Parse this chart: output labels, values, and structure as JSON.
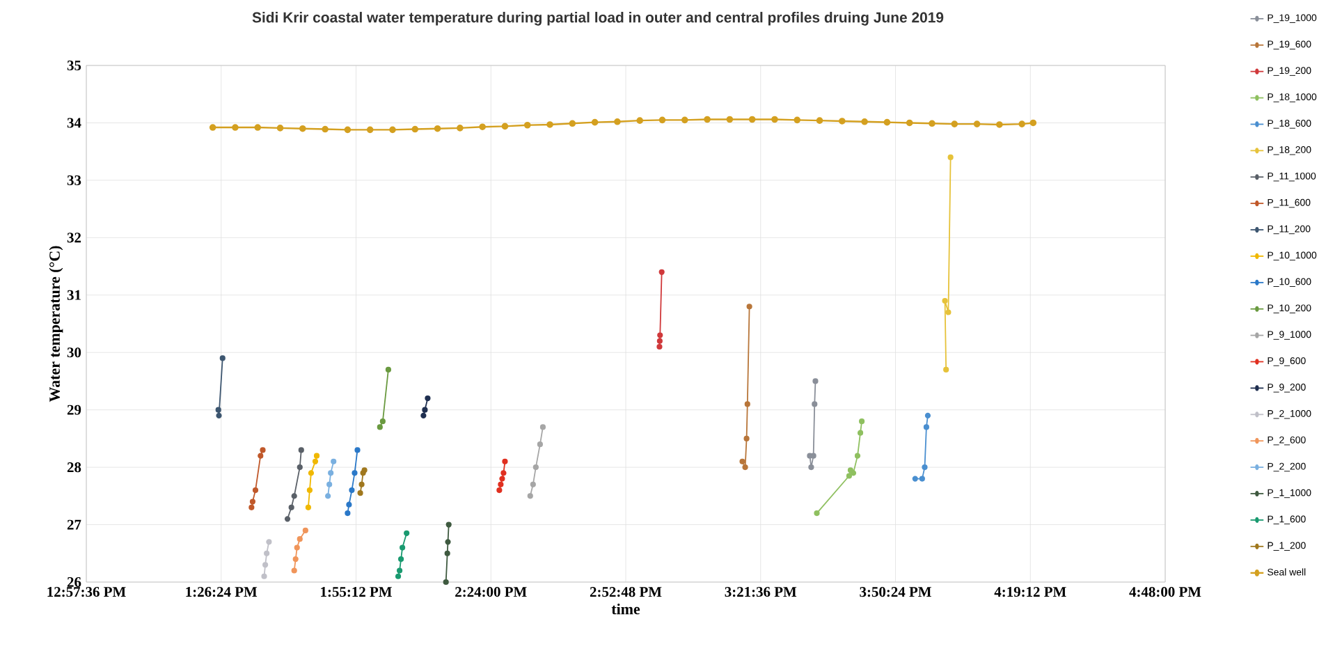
{
  "chart_data": {
    "type": "line",
    "title": "Sidi Krir coastal water temperature during partial load in outer and central profiles druing June 2019",
    "xlabel": "time",
    "ylabel": "Water temperature (°C)",
    "xlim": [
      12.96,
      16.8
    ],
    "ylim": [
      26,
      35
    ],
    "xticks": [
      {
        "value": 12.96,
        "label": "12:57:36 PM"
      },
      {
        "value": 13.44,
        "label": "1:26:24 PM"
      },
      {
        "value": 13.92,
        "label": "1:55:12 PM"
      },
      {
        "value": 14.4,
        "label": "2:24:00 PM"
      },
      {
        "value": 14.88,
        "label": "2:52:48 PM"
      },
      {
        "value": 15.36,
        "label": "3:21:36 PM"
      },
      {
        "value": 15.84,
        "label": "3:50:24 PM"
      },
      {
        "value": 16.32,
        "label": "4:19:12 PM"
      },
      {
        "value": 16.8,
        "label": "4:48:00 PM"
      }
    ],
    "yticks": [
      26,
      27,
      28,
      29,
      30,
      31,
      32,
      33,
      34,
      35
    ],
    "grid": true,
    "legend": "right",
    "marker": "circle",
    "line_style": "solid",
    "series": [
      {
        "name": "P_19_1000",
        "color": "#8a8f99",
        "x": [
          15.535,
          15.54,
          15.548,
          15.552,
          15.555
        ],
        "values": [
          28.2,
          28.0,
          28.2,
          29.1,
          29.5
        ]
      },
      {
        "name": "P_19_600",
        "color": "#b8763a",
        "x": [
          15.295,
          15.305,
          15.31,
          15.313,
          15.32
        ],
        "values": [
          28.1,
          28.0,
          28.5,
          29.1,
          30.8
        ]
      },
      {
        "name": "P_19_200",
        "color": "#d0393b",
        "x": [
          15.0,
          15.001,
          15.002,
          15.008
        ],
        "values": [
          30.1,
          30.2,
          30.3,
          31.4
        ]
      },
      {
        "name": "P_18_1000",
        "color": "#8fc060",
        "x": [
          15.56,
          15.675,
          15.68,
          15.69,
          15.705,
          15.715,
          15.72
        ],
        "values": [
          27.2,
          27.85,
          27.95,
          27.9,
          28.2,
          28.6,
          28.8
        ]
      },
      {
        "name": "P_18_600",
        "color": "#4a8fd0",
        "x": [
          15.91,
          15.935,
          15.944,
          15.95,
          15.955
        ],
        "values": [
          27.8,
          27.8,
          28.0,
          28.7,
          28.9
        ]
      },
      {
        "name": "P_18_200",
        "color": "#e6c23a",
        "x": [
          16.02,
          16.016,
          16.028,
          16.036
        ],
        "values": [
          29.7,
          30.9,
          30.7,
          33.4
        ]
      },
      {
        "name": "P_11_1000",
        "color": "#5a6068",
        "x": [
          13.676,
          13.69,
          13.7,
          13.72,
          13.725
        ],
        "values": [
          27.1,
          27.3,
          27.5,
          28.0,
          28.3
        ]
      },
      {
        "name": "P_11_600",
        "color": "#c0582a",
        "x": [
          13.548,
          13.552,
          13.562,
          13.58,
          13.588
        ],
        "values": [
          27.3,
          27.4,
          27.6,
          28.2,
          28.3
        ]
      },
      {
        "name": "P_11_200",
        "color": "#3d5670",
        "x": [
          13.43,
          13.432,
          13.445
        ],
        "values": [
          29.0,
          28.9,
          29.9
        ]
      },
      {
        "name": "P_10_1000",
        "color": "#f0b800",
        "x": [
          13.75,
          13.755,
          13.76,
          13.775,
          13.78
        ],
        "values": [
          27.3,
          27.6,
          27.9,
          28.1,
          28.2
        ]
      },
      {
        "name": "P_10_600",
        "color": "#2a78c8",
        "x": [
          13.89,
          13.895,
          13.905,
          13.915,
          13.925
        ],
        "values": [
          27.2,
          27.35,
          27.6,
          27.9,
          28.3
        ]
      },
      {
        "name": "P_10_200",
        "color": "#6a9a40",
        "x": [
          14.005,
          14.015,
          14.035
        ],
        "values": [
          28.7,
          28.8,
          29.7
        ]
      },
      {
        "name": "P_9_1000",
        "color": "#a6a6a6",
        "x": [
          14.54,
          14.55,
          14.56,
          14.575,
          14.585
        ],
        "values": [
          27.5,
          27.7,
          28.0,
          28.4,
          28.7
        ]
      },
      {
        "name": "P_9_600",
        "color": "#e03020",
        "x": [
          14.43,
          14.435,
          14.44,
          14.445,
          14.45
        ],
        "values": [
          27.6,
          27.7,
          27.8,
          27.9,
          28.1
        ]
      },
      {
        "name": "P_9_200",
        "color": "#1f2f50",
        "x": [
          14.16,
          14.165,
          14.175
        ],
        "values": [
          28.9,
          29.0,
          29.2
        ]
      },
      {
        "name": "P_2_1000",
        "color": "#c0c0c8",
        "x": [
          13.593,
          13.597,
          13.602,
          13.61
        ],
        "values": [
          26.1,
          26.3,
          26.5,
          26.7
        ]
      },
      {
        "name": "P_2_600",
        "color": "#f0955a",
        "x": [
          13.7,
          13.705,
          13.71,
          13.72,
          13.74
        ],
        "values": [
          26.2,
          26.4,
          26.6,
          26.75,
          26.9
        ]
      },
      {
        "name": "P_2_200",
        "color": "#7ab0e0",
        "x": [
          13.82,
          13.825,
          13.83,
          13.84
        ],
        "values": [
          27.5,
          27.7,
          27.9,
          28.1
        ]
      },
      {
        "name": "P_1_1000",
        "color": "#3f5a40",
        "x": [
          14.24,
          14.245,
          14.247,
          14.25
        ],
        "values": [
          26.0,
          26.5,
          26.7,
          27.0
        ]
      },
      {
        "name": "P_1_600",
        "color": "#1a9a70",
        "x": [
          14.07,
          14.075,
          14.08,
          14.085,
          14.1
        ],
        "values": [
          26.1,
          26.2,
          26.4,
          26.6,
          26.85
        ]
      },
      {
        "name": "P_1_200",
        "color": "#a0781e",
        "x": [
          13.935,
          13.94,
          13.945,
          13.95
        ],
        "values": [
          27.55,
          27.7,
          27.9,
          27.95
        ]
      },
      {
        "name": "Seal well",
        "color": "#d4a020",
        "x": [
          13.41,
          13.49,
          13.57,
          13.65,
          13.73,
          13.81,
          13.89,
          13.97,
          14.05,
          14.13,
          14.21,
          14.29,
          14.37,
          14.45,
          14.53,
          14.61,
          14.69,
          14.77,
          14.85,
          14.93,
          15.01,
          15.09,
          15.17,
          15.25,
          15.33,
          15.41,
          15.49,
          15.57,
          15.65,
          15.73,
          15.81,
          15.89,
          15.97,
          16.05,
          16.13,
          16.21,
          16.29,
          16.33
        ],
        "values": [
          33.92,
          33.92,
          33.92,
          33.91,
          33.9,
          33.89,
          33.88,
          33.88,
          33.88,
          33.89,
          33.9,
          33.91,
          33.93,
          33.94,
          33.96,
          33.97,
          33.99,
          34.01,
          34.02,
          34.04,
          34.05,
          34.05,
          34.06,
          34.06,
          34.06,
          34.06,
          34.05,
          34.04,
          34.03,
          34.02,
          34.01,
          34.0,
          33.99,
          33.98,
          33.98,
          33.97,
          33.98,
          34.0
        ]
      }
    ]
  }
}
